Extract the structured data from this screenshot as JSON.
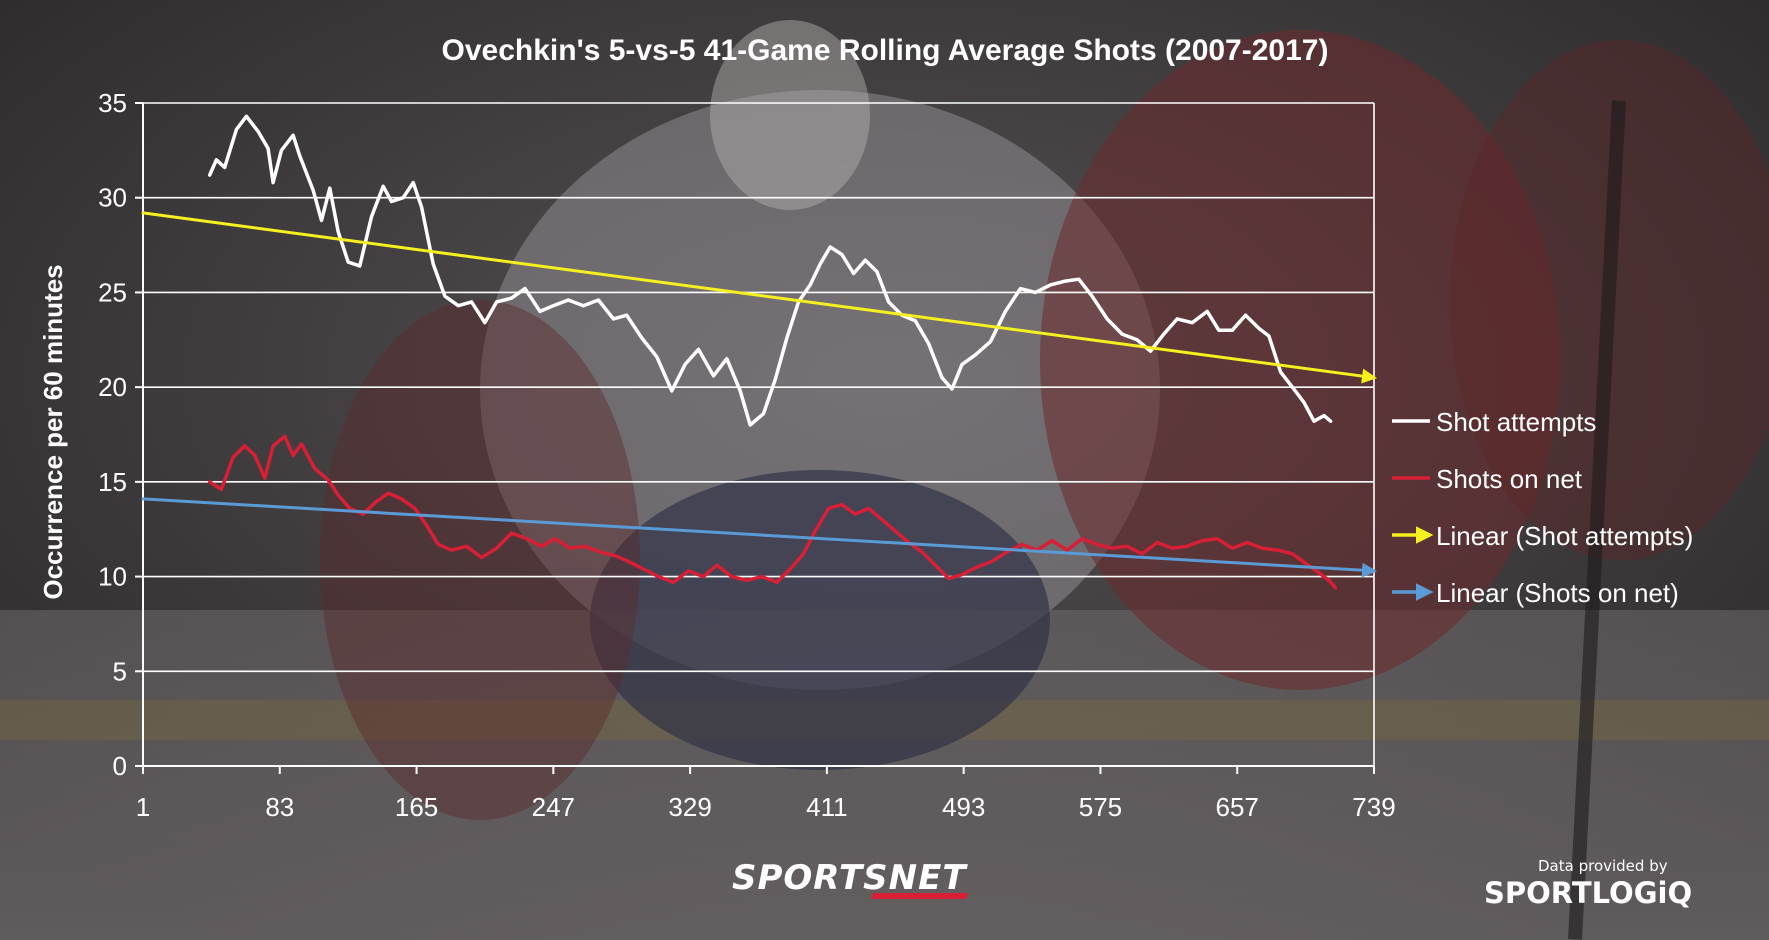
{
  "chart_data": {
    "type": "line",
    "title": "Ovechkin's 5-vs-5 41-Game Rolling Average Shots (2007-2017)",
    "xlabel": "",
    "ylabel": "Occurrence per 60 minutes",
    "xlim": [
      1,
      739
    ],
    "ylim": [
      0,
      35
    ],
    "x_ticks": [
      1,
      83,
      165,
      247,
      329,
      411,
      493,
      575,
      657,
      739
    ],
    "y_ticks": [
      0,
      5,
      10,
      15,
      20,
      25,
      30,
      35
    ],
    "grid": true,
    "legend_position": "right",
    "series": [
      {
        "name": "Shot attempts",
        "color": "#ffffff",
        "points": [
          [
            41,
            31.2
          ],
          [
            45,
            32.0
          ],
          [
            50,
            31.6
          ],
          [
            57,
            33.6
          ],
          [
            63,
            34.3
          ],
          [
            70,
            33.5
          ],
          [
            76,
            32.6
          ],
          [
            79,
            30.8
          ],
          [
            84,
            32.5
          ],
          [
            91,
            33.3
          ],
          [
            95,
            32.2
          ],
          [
            103,
            30.4
          ],
          [
            108,
            28.8
          ],
          [
            113,
            30.5
          ],
          [
            118,
            28.2
          ],
          [
            124,
            26.6
          ],
          [
            131,
            26.4
          ],
          [
            138,
            29.0
          ],
          [
            145,
            30.6
          ],
          [
            150,
            29.8
          ],
          [
            157,
            30.0
          ],
          [
            163,
            30.8
          ],
          [
            168,
            29.5
          ],
          [
            175,
            26.5
          ],
          [
            182,
            24.8
          ],
          [
            190,
            24.3
          ],
          [
            198,
            24.5
          ],
          [
            206,
            23.4
          ],
          [
            213,
            24.5
          ],
          [
            222,
            24.7
          ],
          [
            230,
            25.2
          ],
          [
            239,
            24.0
          ],
          [
            247,
            24.3
          ],
          [
            256,
            24.6
          ],
          [
            265,
            24.3
          ],
          [
            274,
            24.6
          ],
          [
            283,
            23.6
          ],
          [
            291,
            23.8
          ],
          [
            300,
            22.6
          ],
          [
            309,
            21.6
          ],
          [
            318,
            19.8
          ],
          [
            326,
            21.2
          ],
          [
            334,
            22.0
          ],
          [
            343,
            20.6
          ],
          [
            351,
            21.5
          ],
          [
            359,
            19.8
          ],
          [
            365,
            18.0
          ],
          [
            373,
            18.6
          ],
          [
            380,
            20.4
          ],
          [
            387,
            22.6
          ],
          [
            394,
            24.5
          ],
          [
            401,
            25.4
          ],
          [
            407,
            26.5
          ],
          [
            413,
            27.4
          ],
          [
            420,
            27.0
          ],
          [
            427,
            26.0
          ],
          [
            434,
            26.7
          ],
          [
            441,
            26.1
          ],
          [
            448,
            24.5
          ],
          [
            456,
            23.8
          ],
          [
            464,
            23.5
          ],
          [
            472,
            22.3
          ],
          [
            480,
            20.5
          ],
          [
            486,
            19.9
          ],
          [
            492,
            21.2
          ],
          [
            500,
            21.7
          ],
          [
            509,
            22.4
          ],
          [
            518,
            24.0
          ],
          [
            527,
            25.2
          ],
          [
            536,
            25.0
          ],
          [
            545,
            25.4
          ],
          [
            554,
            25.6
          ],
          [
            562,
            25.7
          ],
          [
            570,
            24.8
          ],
          [
            579,
            23.6
          ],
          [
            588,
            22.8
          ],
          [
            597,
            22.5
          ],
          [
            605,
            21.9
          ],
          [
            613,
            22.8
          ],
          [
            621,
            23.6
          ],
          [
            630,
            23.4
          ],
          [
            639,
            24.0
          ],
          [
            646,
            23.0
          ],
          [
            654,
            23.0
          ],
          [
            662,
            23.8
          ],
          [
            670,
            23.1
          ],
          [
            676,
            22.7
          ],
          [
            683,
            20.8
          ],
          [
            690,
            20.0
          ],
          [
            697,
            19.2
          ],
          [
            703,
            18.2
          ],
          [
            709,
            18.5
          ],
          [
            713,
            18.2
          ]
        ]
      },
      {
        "name": "Shots on net",
        "color": "#d81f35",
        "points": [
          [
            41,
            15.0
          ],
          [
            48,
            14.6
          ],
          [
            55,
            16.3
          ],
          [
            62,
            16.9
          ],
          [
            68,
            16.4
          ],
          [
            74,
            15.2
          ],
          [
            79,
            16.9
          ],
          [
            86,
            17.4
          ],
          [
            91,
            16.4
          ],
          [
            96,
            17.0
          ],
          [
            104,
            15.7
          ],
          [
            112,
            15.1
          ],
          [
            118,
            14.3
          ],
          [
            125,
            13.6
          ],
          [
            133,
            13.3
          ],
          [
            140,
            13.9
          ],
          [
            148,
            14.4
          ],
          [
            156,
            14.1
          ],
          [
            164,
            13.6
          ],
          [
            171,
            12.7
          ],
          [
            178,
            11.7
          ],
          [
            186,
            11.4
          ],
          [
            195,
            11.6
          ],
          [
            204,
            11.0
          ],
          [
            213,
            11.5
          ],
          [
            222,
            12.3
          ],
          [
            231,
            12.0
          ],
          [
            240,
            11.6
          ],
          [
            248,
            12.0
          ],
          [
            257,
            11.5
          ],
          [
            266,
            11.6
          ],
          [
            275,
            11.3
          ],
          [
            284,
            11.1
          ],
          [
            292,
            10.8
          ],
          [
            301,
            10.4
          ],
          [
            310,
            10.0
          ],
          [
            319,
            9.7
          ],
          [
            328,
            10.3
          ],
          [
            337,
            10.0
          ],
          [
            345,
            10.6
          ],
          [
            354,
            10.0
          ],
          [
            363,
            9.8
          ],
          [
            372,
            10.0
          ],
          [
            381,
            9.7
          ],
          [
            389,
            10.4
          ],
          [
            397,
            11.2
          ],
          [
            404,
            12.4
          ],
          [
            412,
            13.6
          ],
          [
            420,
            13.8
          ],
          [
            428,
            13.3
          ],
          [
            436,
            13.6
          ],
          [
            444,
            13.0
          ],
          [
            452,
            12.4
          ],
          [
            460,
            11.8
          ],
          [
            468,
            11.3
          ],
          [
            476,
            10.6
          ],
          [
            484,
            9.9
          ],
          [
            492,
            10.1
          ],
          [
            501,
            10.5
          ],
          [
            510,
            10.8
          ],
          [
            519,
            11.3
          ],
          [
            528,
            11.7
          ],
          [
            537,
            11.4
          ],
          [
            546,
            11.9
          ],
          [
            555,
            11.4
          ],
          [
            564,
            12.0
          ],
          [
            573,
            11.7
          ],
          [
            582,
            11.5
          ],
          [
            591,
            11.6
          ],
          [
            600,
            11.2
          ],
          [
            609,
            11.8
          ],
          [
            618,
            11.5
          ],
          [
            627,
            11.6
          ],
          [
            636,
            11.9
          ],
          [
            645,
            12.0
          ],
          [
            654,
            11.5
          ],
          [
            663,
            11.8
          ],
          [
            672,
            11.5
          ],
          [
            681,
            11.4
          ],
          [
            690,
            11.2
          ],
          [
            698,
            10.7
          ],
          [
            706,
            10.2
          ],
          [
            712,
            9.8
          ],
          [
            716,
            9.4
          ]
        ]
      },
      {
        "name": "Linear (Shot attempts)",
        "color": "#f5f01e",
        "points": [
          [
            1,
            29.2
          ],
          [
            739,
            20.5
          ]
        ]
      },
      {
        "name": "Linear (Shots on net)",
        "color": "#5b9bd5",
        "points": [
          [
            1,
            14.1
          ],
          [
            739,
            10.3
          ]
        ]
      }
    ]
  },
  "branding": {
    "broadcaster_logo": "SPORTSNET",
    "credit_line": "Data provided by",
    "data_provider_logo": "SPORTLOGiQ"
  }
}
